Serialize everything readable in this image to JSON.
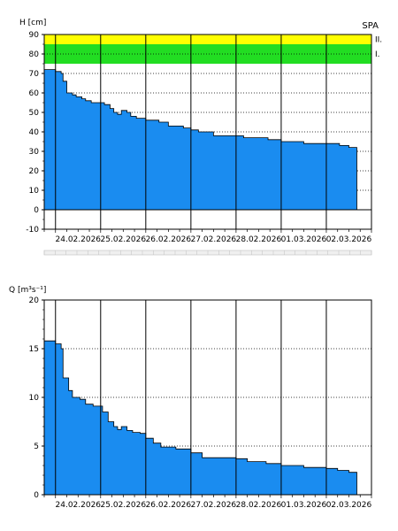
{
  "station_code": "SPA",
  "colors": {
    "fill": "#1a8cf0",
    "stroke": "#000000",
    "band_green": "#22dd22",
    "band_yellow": "#ffff00",
    "scrollbar": "#e6e6e6"
  },
  "chart_data": [
    {
      "type": "area",
      "ylabel": "H [cm]",
      "ylim": [
        -10,
        90
      ],
      "yticks": [
        -10,
        0,
        10,
        20,
        30,
        40,
        50,
        60,
        70,
        80,
        90
      ],
      "xlim": [
        "2026-02-23T18:00",
        "2026-03-03T00:00"
      ],
      "day_lines": [
        "2026-02-24T00:00",
        "2026-02-25T00:00",
        "2026-02-26T00:00",
        "2026-02-27T00:00",
        "2026-02-28T00:00",
        "2026-03-01T00:00",
        "2026-03-02T00:00"
      ],
      "xtick_labels": [
        "24.02.2026",
        "25.02.2026",
        "26.02.2026",
        "27.02.2026",
        "28.02.2026",
        "01.03.2026",
        "02.03.2026"
      ],
      "bands": [
        {
          "label": "I.",
          "from": 75,
          "to": 85,
          "color": "green"
        },
        {
          "label": "II.",
          "from": 85,
          "to": 90,
          "color": "yellow"
        }
      ],
      "grid": "dotted-horizontal",
      "series": [
        {
          "x": [
            "2026-02-23T18:00",
            "2026-02-24T00:00",
            "2026-02-24T03:00",
            "2026-02-24T04:00",
            "2026-02-24T06:00",
            "2026-02-24T09:00",
            "2026-02-24T11:00",
            "2026-02-24T14:00",
            "2026-02-24T16:00",
            "2026-02-24T19:00",
            "2026-02-24T21:00",
            "2026-02-25T02:00",
            "2026-02-25T05:00",
            "2026-02-25T07:00",
            "2026-02-25T09:00",
            "2026-02-25T11:00",
            "2026-02-25T14:00",
            "2026-02-25T16:00",
            "2026-02-25T19:00",
            "2026-02-26T00:00",
            "2026-02-26T07:00",
            "2026-02-26T12:00",
            "2026-02-26T20:00",
            "2026-02-27T00:00",
            "2026-02-27T04:00",
            "2026-02-27T12:00",
            "2026-02-28T00:00",
            "2026-02-28T04:00",
            "2026-02-28T09:00",
            "2026-02-28T17:00",
            "2026-03-01T00:00",
            "2026-03-01T12:00",
            "2026-03-02T00:00",
            "2026-03-02T07:00",
            "2026-03-02T12:00"
          ],
          "y": [
            72,
            71,
            70,
            66,
            60,
            59,
            58,
            57,
            56,
            55,
            55,
            54,
            52,
            50,
            49,
            51,
            50,
            48,
            47,
            46,
            45,
            43,
            42,
            41,
            40,
            38,
            38,
            37,
            37,
            36,
            35,
            34,
            34,
            33,
            32
          ]
        }
      ]
    },
    {
      "type": "area",
      "ylabel": "Q [m³s⁻¹]",
      "ylim": [
        0,
        20
      ],
      "yticks": [
        0,
        5,
        10,
        15,
        20
      ],
      "xlim": [
        "2026-02-23T18:00",
        "2026-03-03T00:00"
      ],
      "day_lines": [
        "2026-02-24T00:00",
        "2026-02-25T00:00",
        "2026-02-26T00:00",
        "2026-02-27T00:00",
        "2026-02-28T00:00",
        "2026-03-01T00:00",
        "2026-03-02T00:00"
      ],
      "xtick_labels": [
        "24.02.2026",
        "25.02.2026",
        "26.02.2026",
        "27.02.2026",
        "28.02.2026",
        "01.03.2026",
        "02.03.2026"
      ],
      "grid": "dotted-horizontal",
      "series": [
        {
          "x": [
            "2026-02-23T18:00",
            "2026-02-24T00:00",
            "2026-02-24T03:00",
            "2026-02-24T04:00",
            "2026-02-24T07:00",
            "2026-02-24T09:00",
            "2026-02-24T13:00",
            "2026-02-24T16:00",
            "2026-02-24T20:00",
            "2026-02-25T01:00",
            "2026-02-25T04:00",
            "2026-02-25T07:00",
            "2026-02-25T09:00",
            "2026-02-25T11:00",
            "2026-02-25T14:00",
            "2026-02-25T17:00",
            "2026-02-25T21:00",
            "2026-02-26T00:00",
            "2026-02-26T04:00",
            "2026-02-26T08:00",
            "2026-02-26T16:00",
            "2026-02-27T00:00",
            "2026-02-27T06:00",
            "2026-02-28T00:00",
            "2026-02-28T06:00",
            "2026-02-28T16:00",
            "2026-03-01T00:00",
            "2026-03-01T12:00",
            "2026-03-02T00:00",
            "2026-03-02T06:00",
            "2026-03-02T12:00"
          ],
          "y": [
            15.8,
            15.5,
            15.0,
            12.0,
            10.7,
            10.0,
            9.8,
            9.3,
            9.1,
            8.5,
            7.5,
            7.0,
            6.7,
            7.0,
            6.6,
            6.4,
            6.3,
            5.8,
            5.3,
            4.9,
            4.7,
            4.3,
            3.8,
            3.7,
            3.4,
            3.2,
            3.0,
            2.8,
            2.7,
            2.5,
            2.3
          ]
        }
      ]
    }
  ]
}
